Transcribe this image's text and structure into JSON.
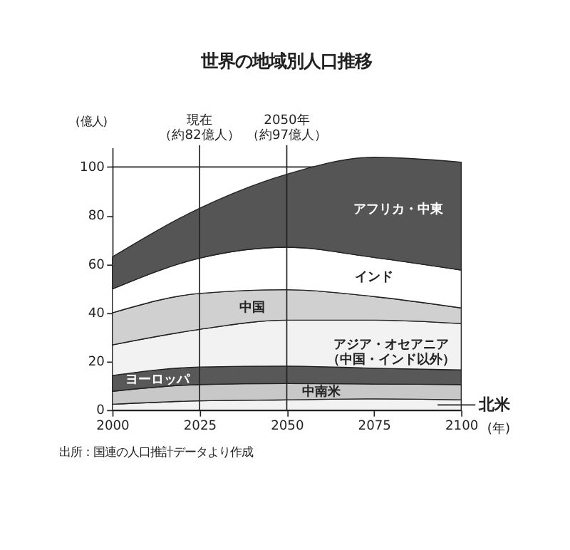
{
  "chart_data": {
    "type": "area",
    "stacked": true,
    "title": "世界の地域別人口推移",
    "ylabel": "(億人)",
    "xlabel": "(年)",
    "x": [
      2000,
      2025,
      2050,
      2075,
      2100
    ],
    "xlim": [
      2000,
      2100
    ],
    "xticks": [
      2000,
      2025,
      2050,
      2075,
      2100
    ],
    "ylim": [
      0,
      108
    ],
    "yticks": [
      0,
      20,
      40,
      60,
      80,
      100
    ],
    "grid": false,
    "legend": "bottom right",
    "ref_lines": [
      {
        "axis": "y",
        "value": 100,
        "label": null
      },
      {
        "axis": "x",
        "value": 2025,
        "label": "現在（約82億人）"
      },
      {
        "axis": "x",
        "value": 2050,
        "label": "2050年（約97億人）"
      }
    ],
    "series": [
      {
        "name": "北米",
        "color": "#f2f2f2",
        "values": [
          2.4,
          3.8,
          4.2,
          4.6,
          4.2
        ]
      },
      {
        "name": "中南米",
        "color": "#c8c8c8",
        "values": [
          5.3,
          6.7,
          6.7,
          6.1,
          6.3
        ]
      },
      {
        "name": "ヨーロッパ",
        "color": "#585858",
        "values": [
          6.5,
          7.2,
          7.2,
          6.5,
          6.0
        ]
      },
      {
        "name": "アジア・オセアニア（中国・インド以外）",
        "color": "#f2f2f2",
        "values": [
          12.6,
          15.5,
          18.9,
          19.8,
          19.1
        ]
      },
      {
        "name": "中国",
        "color": "#d0d0d0",
        "values": [
          13.2,
          14.8,
          12.5,
          9.7,
          6.4
        ]
      },
      {
        "name": "インド",
        "color": "#ffffff",
        "values": [
          9.8,
          14.5,
          17.5,
          16.1,
          15.6
        ]
      },
      {
        "name": "アフリカ・中東",
        "color": "#555555",
        "values": [
          13.2,
          20.5,
          30.0,
          41.2,
          44.4
        ]
      }
    ],
    "annotations": [
      "出所：国連の人口推計データより作成"
    ]
  }
}
